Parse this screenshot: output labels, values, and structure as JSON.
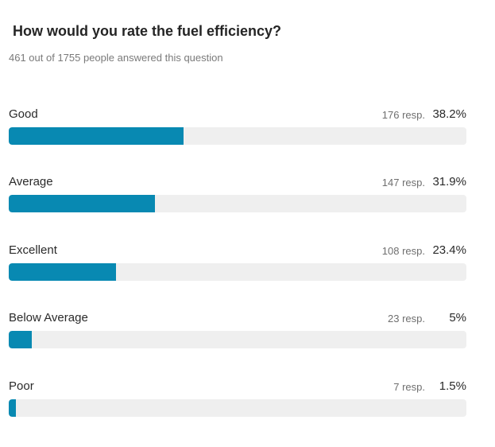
{
  "poll": {
    "question": "How would you rate the fuel efficiency?",
    "answered_text": "461 out of 1755 people answered this question",
    "bar_color": "#0889b2",
    "track_color": "#efefef",
    "options": [
      {
        "label": "Good",
        "responses": "176 resp.",
        "percent_text": "38.2%",
        "fraction": 0.382
      },
      {
        "label": "Average",
        "responses": "147 resp.",
        "percent_text": "31.9%",
        "fraction": 0.319
      },
      {
        "label": "Excellent",
        "responses": "108 resp.",
        "percent_text": "23.4%",
        "fraction": 0.234
      },
      {
        "label": "Below Average",
        "responses": "23 resp.",
        "percent_text": "5%",
        "fraction": 0.05
      },
      {
        "label": "Poor",
        "responses": "7 resp.",
        "percent_text": "1.5%",
        "fraction": 0.015
      }
    ]
  }
}
